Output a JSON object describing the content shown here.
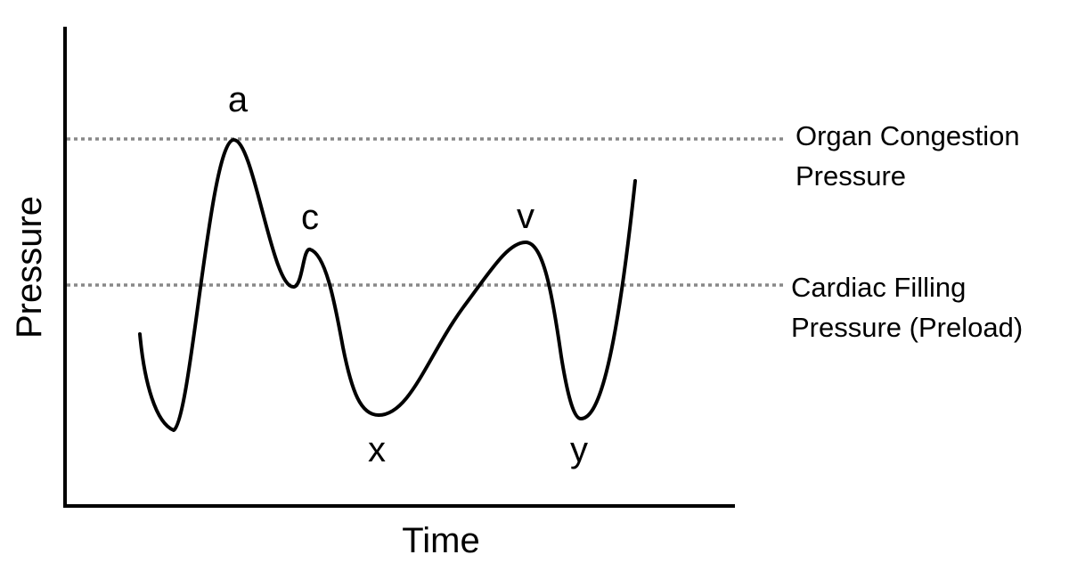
{
  "axes": {
    "y_label": "Pressure",
    "x_label": "Time"
  },
  "wave_labels": {
    "a": "a",
    "c": "c",
    "x": "x",
    "v": "v",
    "y": "y"
  },
  "reference_lines": [
    {
      "label_lines": [
        "Organ Congestion",
        "Pressure"
      ]
    },
    {
      "label_lines": [
        "Cardiac Filling",
        "Pressure (Preload)"
      ]
    }
  ]
}
